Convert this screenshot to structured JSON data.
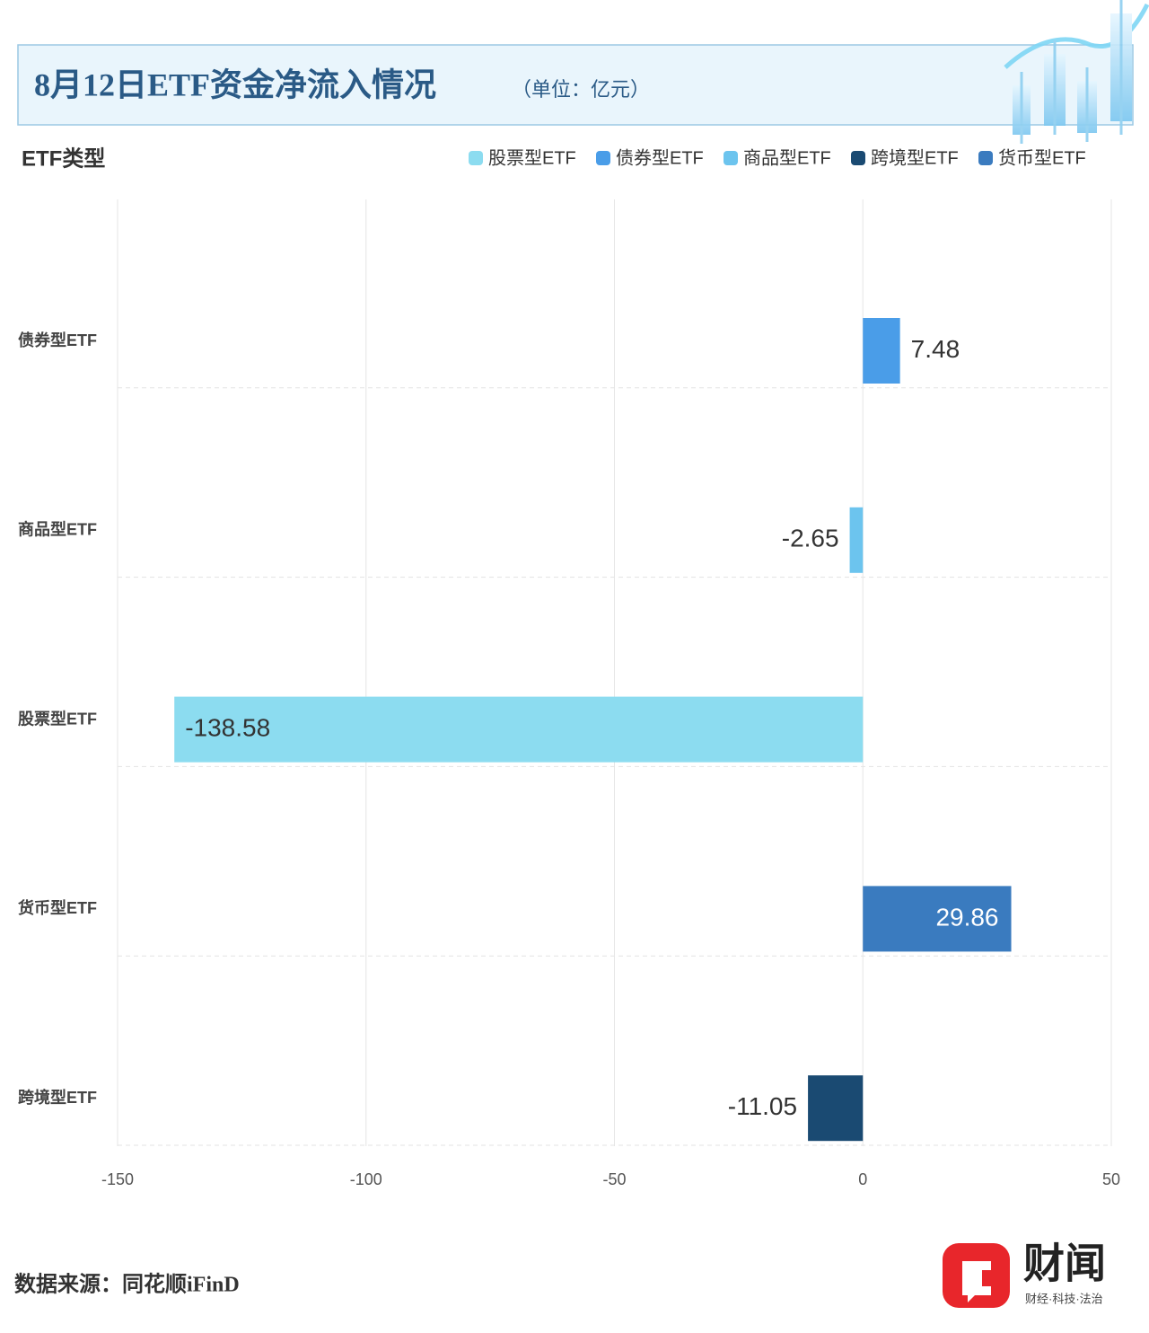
{
  "chart_data": {
    "type": "bar",
    "orientation": "horizontal",
    "title": "8月12日ETF资金净流入情况",
    "subtitle": "（单位：亿元）",
    "y_axis_title": "ETF类型",
    "categories": [
      "债券型ETF",
      "商品型ETF",
      "股票型ETF",
      "货币型ETF",
      "跨境型ETF"
    ],
    "series": [
      {
        "name": "股票型ETF",
        "color": "#8cdcf0",
        "values": [
          null,
          null,
          -138.58,
          null,
          null
        ]
      },
      {
        "name": "债券型ETF",
        "color": "#4a9de8",
        "values": [
          7.48,
          null,
          null,
          null,
          null
        ]
      },
      {
        "name": "商品型ETF",
        "color": "#6cc4ee",
        "values": [
          null,
          -2.65,
          null,
          null,
          null
        ]
      },
      {
        "name": "跨境型ETF",
        "color": "#1a4a72",
        "values": [
          null,
          null,
          null,
          null,
          -11.05
        ]
      },
      {
        "name": "货币型ETF",
        "color": "#3a7bbf",
        "values": [
          null,
          null,
          null,
          29.86,
          null
        ]
      }
    ],
    "xlim": [
      -150,
      50
    ],
    "xticks": [
      -150,
      -100,
      -50,
      0,
      50
    ],
    "grid": true,
    "source": "数据来源：同花顺iFinD",
    "logo": "财闻",
    "logo_tagline": "财经·科技·法治"
  }
}
